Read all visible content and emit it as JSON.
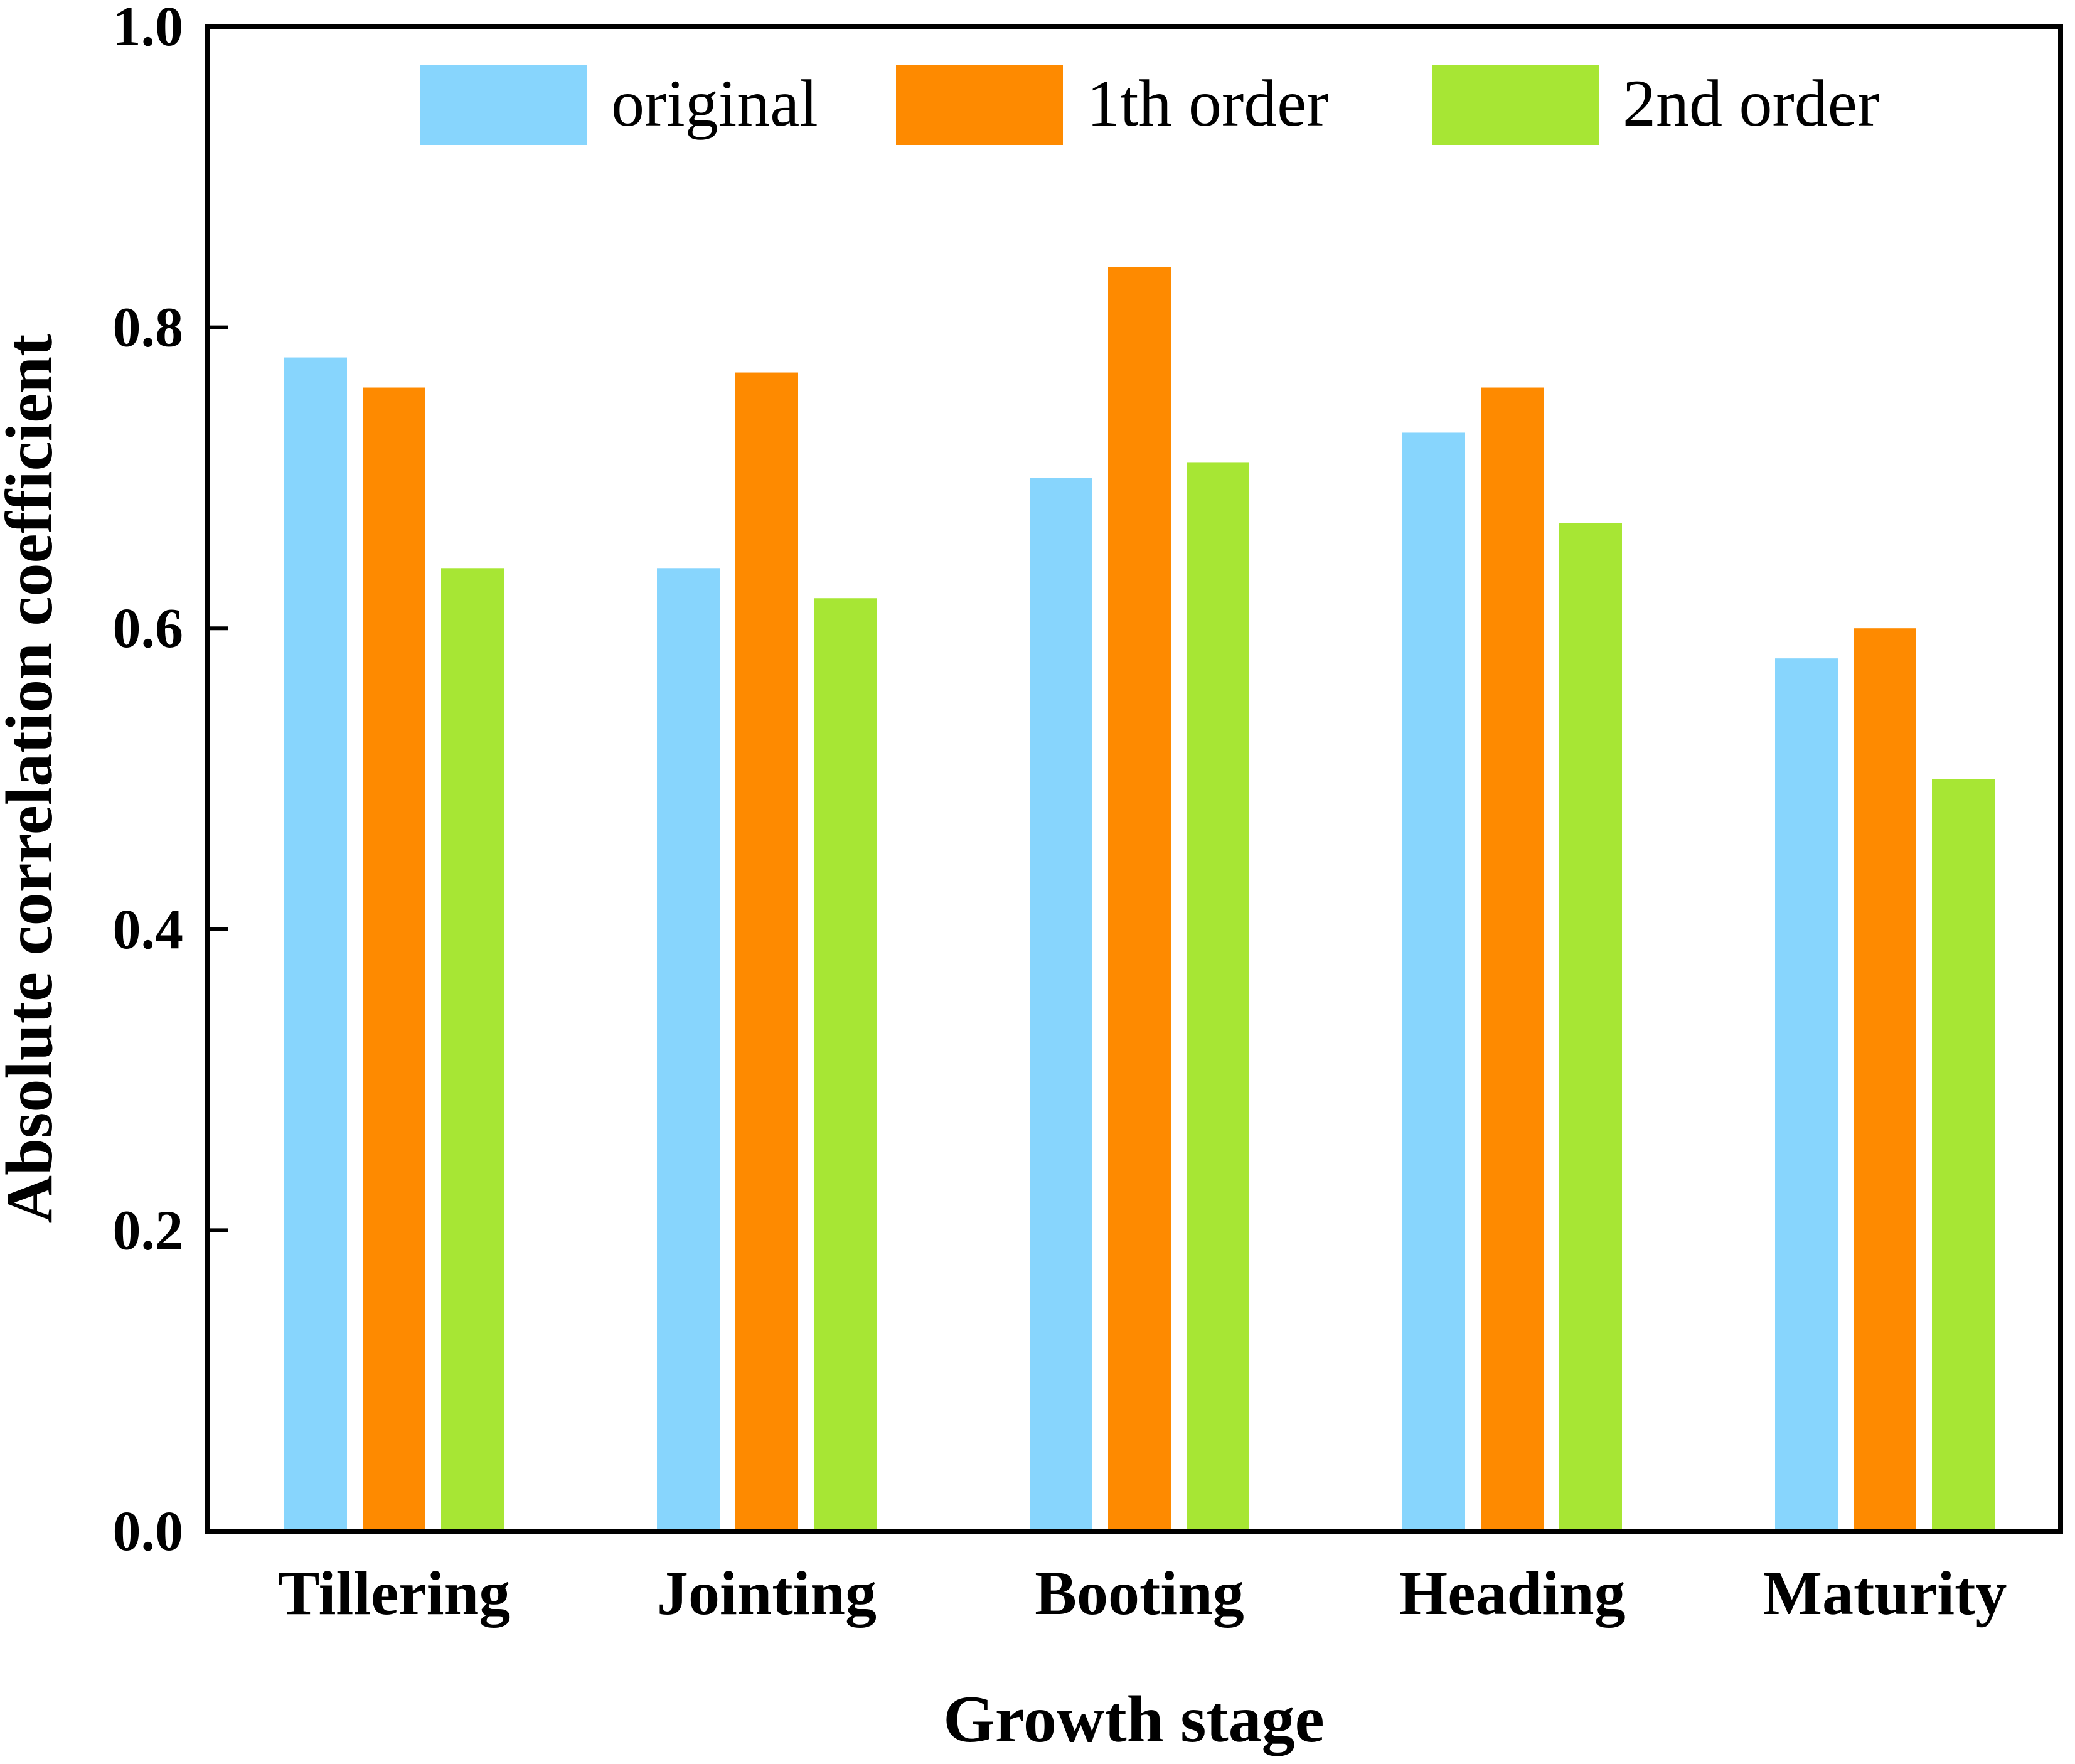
{
  "chart_data": {
    "type": "bar",
    "xlabel": "Growth stage",
    "ylabel": "Absolute correlation coefficient",
    "ylim": [
      0.0,
      1.0
    ],
    "yticks": [
      "0.0",
      "0.2",
      "0.4",
      "0.6",
      "0.8",
      "1.0"
    ],
    "categories": [
      "Tillering",
      "Jointing",
      "Booting",
      "Heading",
      "Maturity"
    ],
    "series": [
      {
        "name": "original",
        "color": "#87D5FD",
        "values": [
          0.78,
          0.64,
          0.7,
          0.73,
          0.58
        ]
      },
      {
        "name": "1th order",
        "color": "#FE8A00",
        "values": [
          0.76,
          0.77,
          0.84,
          0.76,
          0.6
        ]
      },
      {
        "name": "2nd order",
        "color": "#A7E634",
        "values": [
          0.64,
          0.62,
          0.71,
          0.67,
          0.5
        ]
      }
    ],
    "grid": false,
    "legend_position": "top"
  }
}
